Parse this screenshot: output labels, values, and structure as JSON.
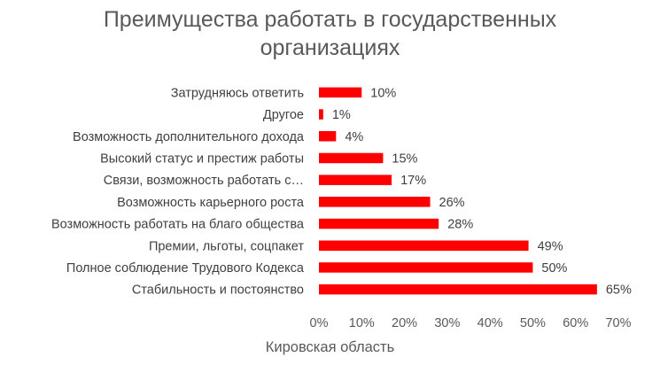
{
  "chart_data": {
    "type": "bar",
    "orientation": "horizontal",
    "title_lines": [
      "Преимущества работать в государственных",
      "организациях"
    ],
    "xlabel": "Кировская область",
    "categories": [
      "Затрудняюсь ответить",
      "Другое",
      "Возможность дополнительного дохода",
      "Высокий статус и престиж работы",
      "Связи, возможность работать с…",
      "Возможность карьерного роста",
      "Возможность работать на благо общества",
      "Премии, льготы, соцпакет",
      "Полное соблюдение Трудового Кодекса",
      "Стабильность и постоянство"
    ],
    "values": [
      10,
      1,
      4,
      15,
      17,
      26,
      28,
      49,
      50,
      65
    ],
    "value_labels": [
      "10%",
      "1%",
      "4%",
      "15%",
      "17%",
      "26%",
      "28%",
      "49%",
      "50%",
      "65%"
    ],
    "xlim": [
      0,
      70
    ],
    "xticks": [
      0,
      10,
      20,
      30,
      40,
      50,
      60,
      70
    ],
    "xtick_labels": [
      "0%",
      "10%",
      "20%",
      "30%",
      "40%",
      "50%",
      "60%",
      "70%"
    ],
    "bar_color": "#ff0000",
    "grid": false,
    "legend": "none"
  }
}
